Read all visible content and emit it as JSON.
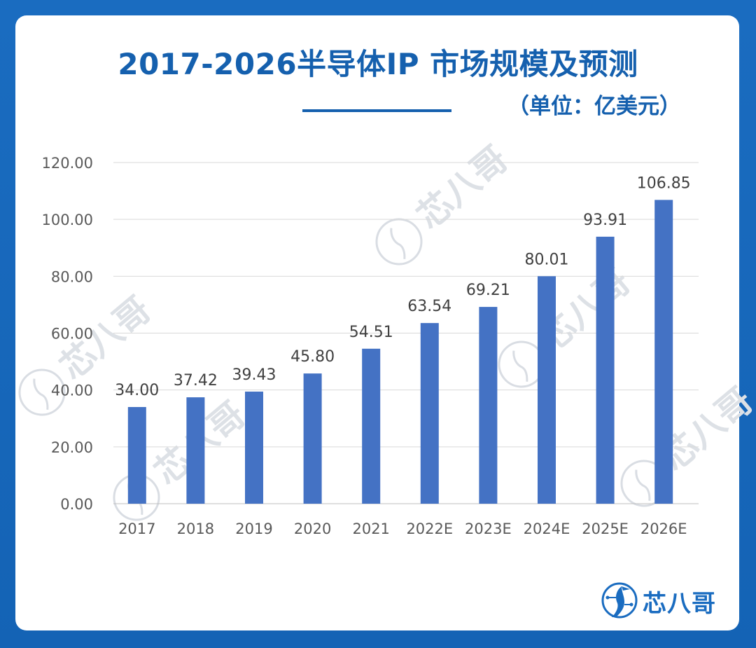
{
  "title": "2017-2026半导体IP 市场规模及预测",
  "unit": "（单位：亿美元）",
  "brand": "芯八哥",
  "watermark_text": "芯八哥",
  "colors": {
    "bar": "#4472c4",
    "title": "#1560ae",
    "background": "#1565b3",
    "grid": "#d9d9d9"
  },
  "chart_data": {
    "type": "bar",
    "categories": [
      "2017",
      "2018",
      "2019",
      "2020",
      "2021",
      "2022E",
      "2023E",
      "2024E",
      "2025E",
      "2026E"
    ],
    "values": [
      34.0,
      37.42,
      39.43,
      45.8,
      54.51,
      63.54,
      69.21,
      80.01,
      93.91,
      106.85
    ],
    "value_labels": [
      "34.00",
      "37.42",
      "39.43",
      "45.80",
      "54.51",
      "63.54",
      "69.21",
      "80.01",
      "93.91",
      "106.85"
    ],
    "yticks": [
      "0.00",
      "20.00",
      "40.00",
      "60.00",
      "80.00",
      "100.00",
      "120.00"
    ],
    "ylim": [
      0,
      120
    ],
    "grid": true,
    "legend": "none"
  }
}
